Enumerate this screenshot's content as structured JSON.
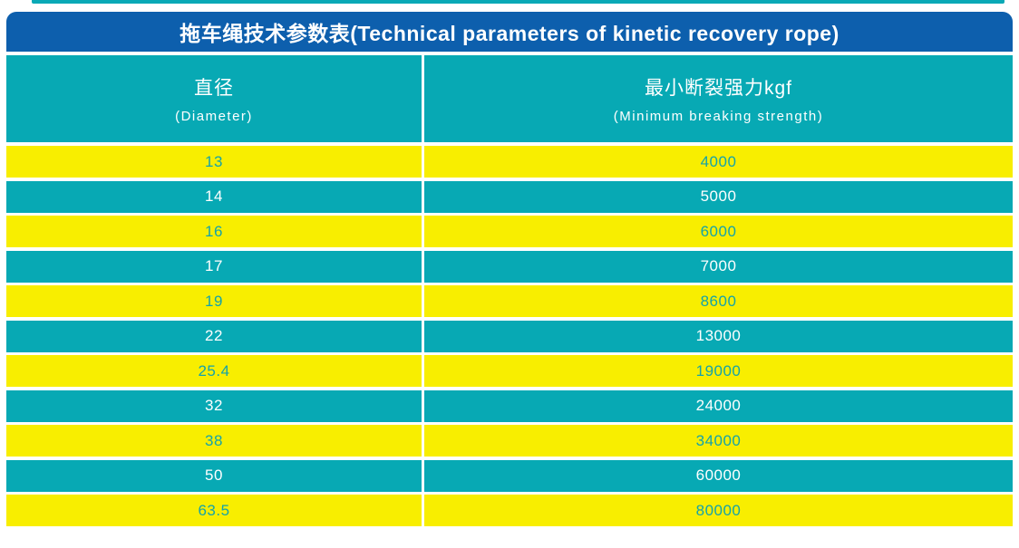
{
  "title": "拖车绳技术参数表(Technical parameters of kinetic recovery rope)",
  "columns": [
    {
      "zh": "直径",
      "en": "(Diameter)"
    },
    {
      "zh": "最小断裂强力kgf",
      "en": "(Minimum breaking strength)"
    }
  ],
  "rows": [
    {
      "diameter": "13",
      "strength": "4000"
    },
    {
      "diameter": "14",
      "strength": "5000"
    },
    {
      "diameter": "16",
      "strength": "6000"
    },
    {
      "diameter": "17",
      "strength": "7000"
    },
    {
      "diameter": "19",
      "strength": "8600"
    },
    {
      "diameter": "22",
      "strength": "13000"
    },
    {
      "diameter": "25.4",
      "strength": "19000"
    },
    {
      "diameter": "32",
      "strength": "24000"
    },
    {
      "diameter": "38",
      "strength": "34000"
    },
    {
      "diameter": "50",
      "strength": "60000"
    },
    {
      "diameter": "63.5",
      "strength": "80000"
    }
  ],
  "colors": {
    "title_bar": "#0d5fad",
    "header_teal": "#07a9b4",
    "row_yellow": "#f8ee00",
    "row_teal": "#07a9b4",
    "text_on_teal": "#ffffff",
    "text_on_yellow": "#14a3aa",
    "top_strip": "#0aa9b6"
  }
}
